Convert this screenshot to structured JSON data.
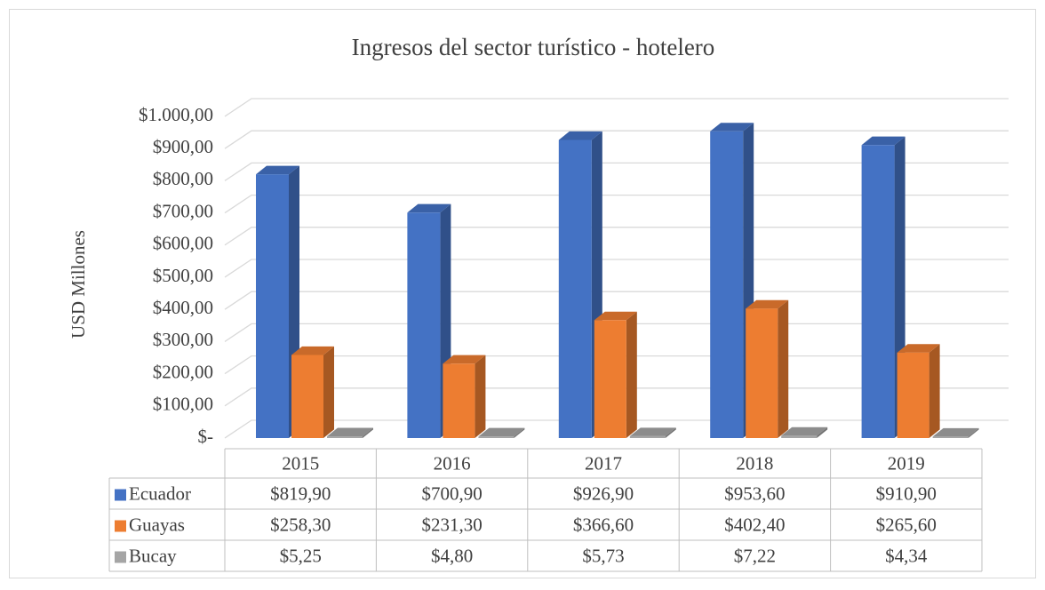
{
  "chart_data": {
    "type": "bar3d",
    "title": "Ingresos del sector turístico - hotelero",
    "ylabel": "USD Millones",
    "categories": [
      "2015",
      "2016",
      "2017",
      "2018",
      "2019"
    ],
    "series": [
      {
        "name": "Ecuador",
        "color": "#4472c4",
        "values": [
          819.9,
          700.9,
          926.9,
          953.6,
          910.9
        ],
        "value_labels": [
          "$819,90",
          "$700,90",
          "$926,90",
          "$953,60",
          "$910,90"
        ]
      },
      {
        "name": "Guayas",
        "color": "#ed7d31",
        "values": [
          258.3,
          231.3,
          366.6,
          402.4,
          265.6
        ],
        "value_labels": [
          "$258,30",
          "$231,30",
          "$366,60",
          "$402,40",
          "$265,60"
        ]
      },
      {
        "name": "Bucay",
        "color": "#a5a5a5",
        "values": [
          5.25,
          4.8,
          5.73,
          7.22,
          4.34
        ],
        "value_labels": [
          "$5,25",
          "$4,80",
          "$5,73",
          "$7,22",
          "$4,34"
        ]
      }
    ],
    "ylim": [
      0,
      1000
    ],
    "yticks": [
      {
        "value": 0,
        "label": "$-"
      },
      {
        "value": 100,
        "label": "$100,00"
      },
      {
        "value": 200,
        "label": "$200,00"
      },
      {
        "value": 300,
        "label": "$300,00"
      },
      {
        "value": 400,
        "label": "$400,00"
      },
      {
        "value": 500,
        "label": "$500,00"
      },
      {
        "value": 600,
        "label": "$600,00"
      },
      {
        "value": 700,
        "label": "$700,00"
      },
      {
        "value": 800,
        "label": "$800,00"
      },
      {
        "value": 900,
        "label": "$900,00"
      },
      {
        "value": 1000,
        "label": "$1.000,00"
      }
    ],
    "grid": true
  }
}
